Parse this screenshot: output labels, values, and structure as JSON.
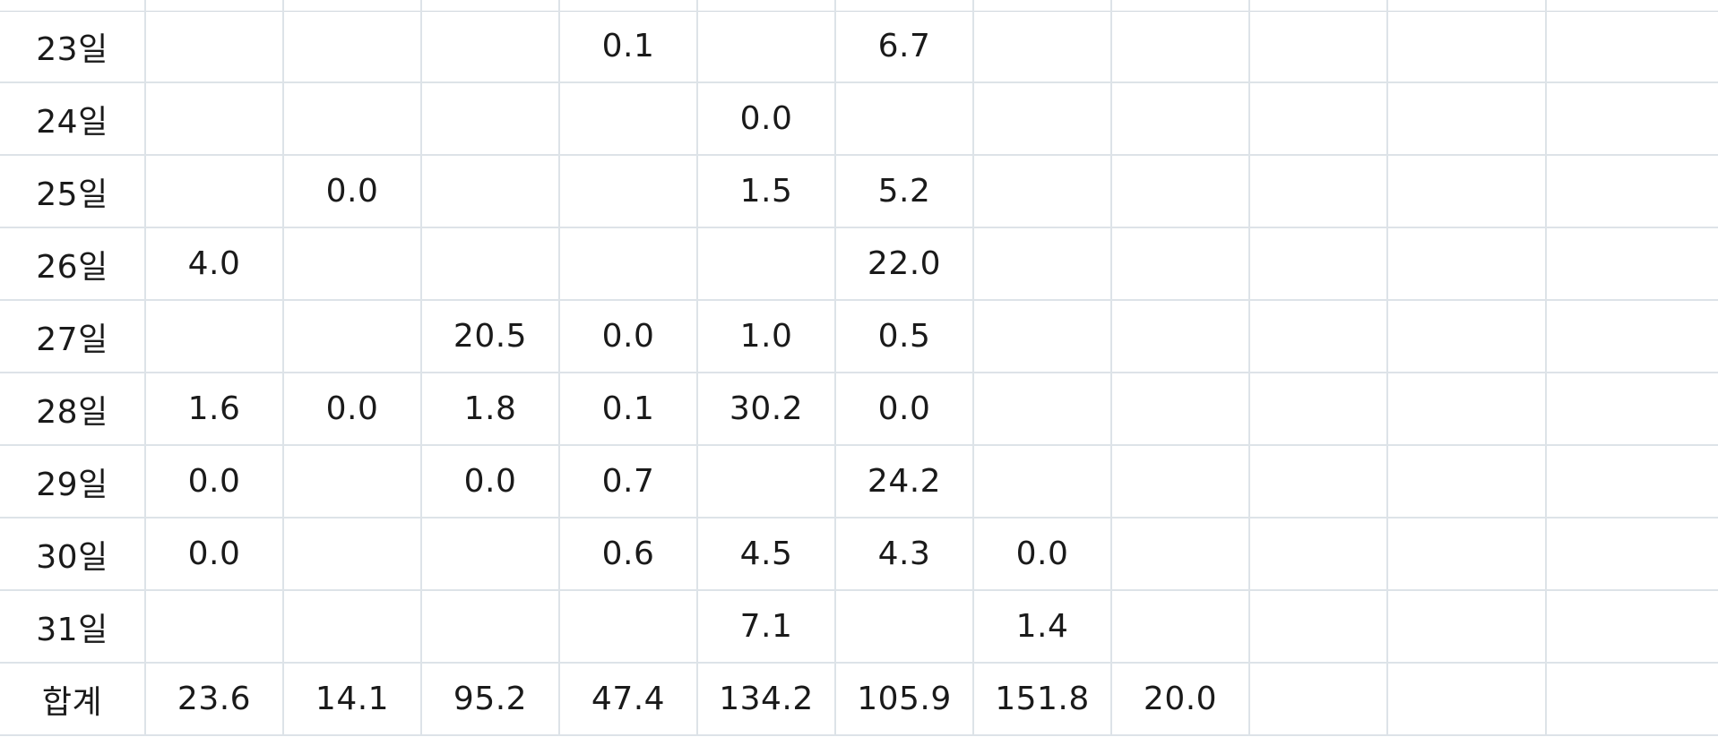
{
  "table": {
    "rows": [
      {
        "label": "23일",
        "cells": [
          "",
          "",
          "",
          "0.1",
          "",
          "6.7",
          "",
          "",
          "",
          "",
          ""
        ]
      },
      {
        "label": "24일",
        "cells": [
          "",
          "",
          "",
          "",
          "0.0",
          "",
          "",
          "",
          "",
          "",
          ""
        ]
      },
      {
        "label": "25일",
        "cells": [
          "",
          "0.0",
          "",
          "",
          "1.5",
          "5.2",
          "",
          "",
          "",
          "",
          ""
        ]
      },
      {
        "label": "26일",
        "cells": [
          "4.0",
          "",
          "",
          "",
          "",
          "22.0",
          "",
          "",
          "",
          "",
          ""
        ]
      },
      {
        "label": "27일",
        "cells": [
          "",
          "",
          "20.5",
          "0.0",
          "1.0",
          "0.5",
          "",
          "",
          "",
          "",
          ""
        ]
      },
      {
        "label": "28일",
        "cells": [
          "1.6",
          "0.0",
          "1.8",
          "0.1",
          "30.2",
          "0.0",
          "",
          "",
          "",
          "",
          ""
        ]
      },
      {
        "label": "29일",
        "cells": [
          "0.0",
          "",
          "0.0",
          "0.7",
          "",
          "24.2",
          "",
          "",
          "",
          "",
          ""
        ]
      },
      {
        "label": "30일",
        "cells": [
          "0.0",
          "",
          "",
          "0.6",
          "4.5",
          "4.3",
          "0.0",
          "",
          "",
          "",
          ""
        ]
      },
      {
        "label": "31일",
        "cells": [
          "",
          "",
          "",
          "",
          "7.1",
          "",
          "1.4",
          "",
          "",
          "",
          ""
        ]
      },
      {
        "label": "합계",
        "cells": [
          "23.6",
          "14.1",
          "95.2",
          "47.4",
          "134.2",
          "105.9",
          "151.8",
          "20.0",
          "",
          "",
          ""
        ]
      }
    ]
  }
}
